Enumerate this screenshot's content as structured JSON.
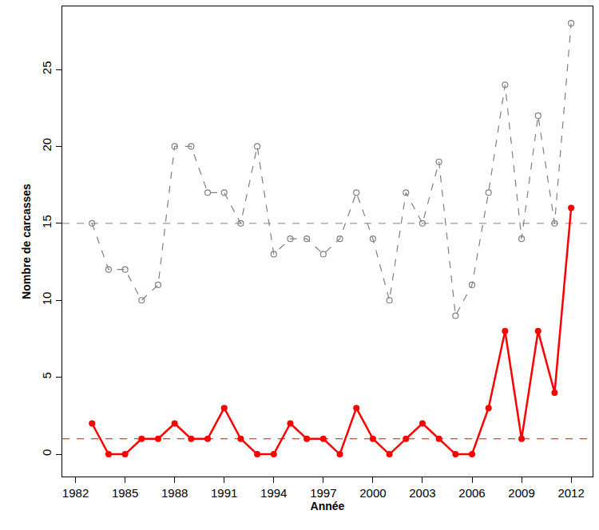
{
  "chart_data": {
    "type": "line",
    "x_label": "Année",
    "y_label": "Nombre de carcasses",
    "x": [
      1983,
      1984,
      1985,
      1986,
      1987,
      1988,
      1989,
      1990,
      1991,
      1992,
      1993,
      1994,
      1995,
      1996,
      1997,
      1998,
      1999,
      2000,
      2001,
      2002,
      2003,
      2004,
      2005,
      2006,
      2007,
      2008,
      2009,
      2010,
      2011,
      2012
    ],
    "series": [
      {
        "color": "#808080",
        "line_style": "dashed",
        "marker": "open_circle",
        "values": [
          15,
          12,
          12,
          10,
          11,
          20,
          20,
          17,
          17,
          15,
          20,
          13,
          14,
          14,
          13,
          14,
          17,
          14,
          10,
          17,
          15,
          19,
          9,
          11,
          17,
          24,
          14,
          22,
          15,
          28
        ]
      },
      {
        "color": "#ff0000",
        "line_style": "solid",
        "marker": "filled_circle",
        "values": [
          2,
          0,
          0,
          1,
          1,
          2,
          1,
          1,
          3,
          1,
          0,
          0,
          2,
          1,
          1,
          0,
          3,
          1,
          0,
          1,
          2,
          1,
          0,
          0,
          3,
          8,
          1,
          8,
          4,
          16
        ]
      }
    ],
    "reference_lines": [
      {
        "value": 15,
        "color": "#808080",
        "line_style": "dashed"
      },
      {
        "value": 1,
        "color": "#ff0000",
        "line_style": "dashed"
      }
    ],
    "xlim": [
      1981.2,
      2013.3
    ],
    "xticks": [
      1982,
      1985,
      1988,
      1991,
      1994,
      1997,
      2000,
      2003,
      2006,
      2009,
      2012
    ],
    "ylim": [
      -1.45,
      29.1
    ],
    "yticks": [
      0,
      5,
      10,
      15,
      20,
      25
    ],
    "grid": false
  }
}
